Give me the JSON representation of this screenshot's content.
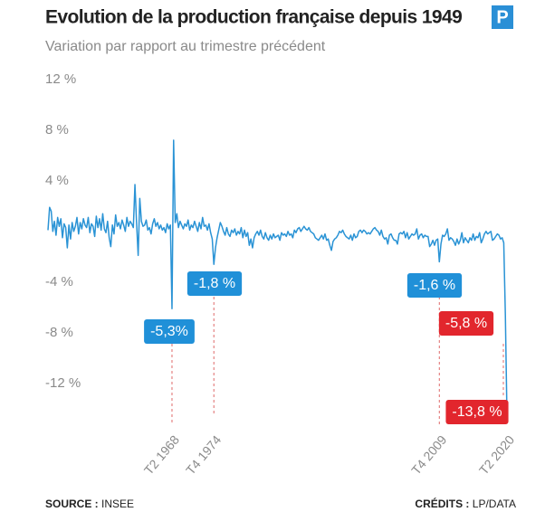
{
  "chart_data": {
    "type": "line",
    "title": "Evolution de la production française depuis 1949",
    "subtitle": "Variation par rapport au trimestre précédent",
    "logo": "P",
    "source_label": "SOURCE :",
    "source": "INSEE",
    "credits_label": "CRÉDITS :",
    "credits": "LP/DATA",
    "ylim": [
      -14,
      12
    ],
    "yticks": [
      {
        "value": 12,
        "label": "12 %"
      },
      {
        "value": 8,
        "label": "8 %"
      },
      {
        "value": 4,
        "label": "4 %"
      },
      {
        "value": -4,
        "label": "-4 %"
      },
      {
        "value": -8,
        "label": "-8 %"
      },
      {
        "value": -12,
        "label": "-12 %"
      }
    ],
    "categories": [
      null,
      null,
      null,
      null,
      null,
      null,
      null,
      null,
      null,
      null,
      null,
      null,
      null,
      null,
      null,
      null,
      null,
      null,
      null,
      null,
      null,
      null,
      null,
      null,
      null,
      null,
      null,
      null,
      null,
      null,
      null,
      null,
      null,
      null,
      null,
      null,
      null,
      null,
      null,
      null,
      null,
      null,
      null,
      null,
      null,
      null,
      null,
      null,
      null,
      null,
      null,
      null,
      null,
      null,
      null,
      null,
      null,
      null,
      null,
      null,
      null,
      null,
      null,
      null,
      null,
      null,
      null,
      null,
      null,
      null,
      null,
      null,
      null,
      null,
      null,
      null,
      null,
      "T2 1968",
      null,
      null,
      null,
      null,
      null,
      null,
      null,
      null,
      null,
      null,
      null,
      null,
      null,
      null,
      null,
      null,
      null,
      null,
      null,
      null,
      null,
      null,
      null,
      null,
      null,
      "T4 1974",
      null,
      null,
      null,
      null,
      null,
      null,
      null,
      null,
      null,
      null,
      null,
      null,
      null,
      null,
      null,
      null,
      null,
      null,
      null,
      null,
      null,
      null,
      null,
      null,
      null,
      null,
      null,
      null,
      null,
      null,
      null,
      null,
      null,
      null,
      null,
      null,
      null,
      null,
      null,
      null,
      null,
      null,
      null,
      null,
      null,
      null,
      null,
      null,
      null,
      null,
      null,
      null,
      null,
      null,
      null,
      null,
      null,
      null,
      null,
      null,
      null,
      null,
      null,
      null,
      null,
      null,
      null,
      null,
      null,
      null,
      null,
      null,
      null,
      null,
      null,
      null,
      null,
      null,
      null,
      null,
      null,
      null,
      null,
      null,
      null,
      null,
      null,
      null,
      null,
      null,
      null,
      null,
      null,
      null,
      null,
      null,
      null,
      null,
      null,
      null,
      null,
      null,
      null,
      null,
      null,
      null,
      null,
      null,
      null,
      null,
      null,
      null,
      null,
      null,
      null,
      null,
      null,
      null,
      null,
      null,
      null,
      null,
      null,
      null,
      null,
      null,
      null,
      null,
      null,
      null,
      null,
      null,
      null,
      null,
      null,
      null,
      null,
      null,
      null,
      "T4 2009",
      null,
      null,
      null,
      null,
      null,
      null,
      null,
      null,
      null,
      null,
      null,
      null,
      null,
      null,
      null,
      null,
      null,
      null,
      null,
      null,
      null,
      null,
      null,
      null,
      null,
      null,
      null,
      null,
      null,
      null,
      null,
      null,
      null,
      null,
      null,
      null,
      null,
      null,
      null,
      null,
      null,
      "T2 2020"
    ],
    "series": [
      {
        "name": "Variation",
        "color": "#2a93d5",
        "values": [
          0.9,
          2.7,
          2.4,
          0.8,
          1.6,
          0.5,
          1.9,
          1.2,
          1.8,
          0.3,
          1.4,
          1.1,
          -0.5,
          1.3,
          0.2,
          1.5,
          0.8,
          1.2,
          1.9,
          0.6,
          1.5,
          1.0,
          1.8,
          1.3,
          1.1,
          1.9,
          0.7,
          1.4,
          1.2,
          0.4,
          2.0,
          1.1,
          1.8,
          0.9,
          2.2,
          1.0,
          0.7,
          1.6,
          0.3,
          -0.4,
          1.3,
          0.6,
          2.1,
          1.2,
          1.5,
          1.0,
          1.7,
          1.3,
          0.8,
          1.9,
          1.2,
          1.6,
          1.4,
          1.1,
          4.5,
          1.5,
          -1.1,
          3.4,
          1.6,
          1.2,
          1.3,
          1.7,
          0.9,
          1.1,
          0.6,
          1.4,
          1.8,
          1.2,
          1.5,
          1.0,
          1.3,
          0.9,
          1.1,
          0.7,
          1.4,
          1.0,
          1.3,
          -5.3,
          8.0,
          1.5,
          2.2,
          1.1,
          1.6,
          1.3,
          1.0,
          1.4,
          1.2,
          1.7,
          0.9,
          1.3,
          1.1,
          1.6,
          1.2,
          0.8,
          1.5,
          1.0,
          1.9,
          1.2,
          1.3,
          0.9,
          1.4,
          0.7,
          0.2,
          -1.8,
          -0.5,
          0.3,
          0.9,
          1.5,
          1.2,
          0.8,
          0.5,
          1.1,
          0.6,
          0.4,
          0.9,
          0.7,
          1.0,
          0.5,
          0.8,
          0.6,
          1.1,
          0.3,
          0.9,
          0.4,
          0.7,
          -0.3,
          0.2,
          -0.5,
          0.3,
          0.6,
          0.8,
          0.5,
          0.9,
          0.4,
          0.2,
          0.7,
          0.3,
          0.1,
          0.5,
          0.2,
          0.6,
          0.3,
          0.4,
          0.5,
          0.1,
          0.7,
          0.5,
          0.6,
          0.4,
          0.8,
          0.5,
          0.6,
          0.3,
          0.9,
          0.7,
          1.0,
          1.1,
          0.8,
          1.0,
          1.2,
          1.0,
          0.9,
          1.1,
          0.8,
          0.7,
          0.6,
          0.3,
          0.2,
          0.1,
          0.3,
          0.5,
          0.2,
          0.6,
          0.1,
          0.2,
          -0.3,
          -0.7,
          0.0,
          0.2,
          0.3,
          0.5,
          0.8,
          0.7,
          0.9,
          0.6,
          0.4,
          0.3,
          0.2,
          0.5,
          0.1,
          0.6,
          0.3,
          0.4,
          0.8,
          0.9,
          0.7,
          0.9,
          0.8,
          0.6,
          0.7,
          0.6,
          0.8,
          1.0,
          1.1,
          0.9,
          0.8,
          0.5,
          0.9,
          0.4,
          0.2,
          0.3,
          -0.2,
          0.5,
          0.6,
          0.3,
          0.1,
          0.1,
          -0.2,
          0.6,
          0.7,
          0.6,
          0.8,
          0.3,
          0.7,
          0.2,
          0.4,
          0.6,
          0.5,
          0.6,
          1.0,
          0.2,
          0.5,
          0.6,
          0.3,
          0.5,
          0.4,
          0.4,
          -0.4,
          -0.2,
          0.1,
          -0.3,
          0.1,
          0.2,
          -1.6,
          -0.2,
          0.5,
          0.4,
          0.6,
          1.0,
          0.1,
          0.3,
          0.2,
          0.0,
          -0.3,
          0.2,
          -0.2,
          0.1,
          0.7,
          -0.1,
          0.3,
          0.1,
          -0.1,
          0.3,
          0.1,
          0.6,
          0.1,
          0.4,
          0.3,
          0.7,
          -0.1,
          0.2,
          0.6,
          0.8,
          0.6,
          0.7,
          0.8,
          0.1,
          0.2,
          0.4,
          0.6,
          0.5,
          0.2,
          0.3,
          -0.1,
          -5.8,
          -13.8
        ]
      }
    ],
    "annotations": [
      {
        "label": "-5,3%",
        "value": -5.3,
        "color": "#2090d8"
      },
      {
        "label": "-1,8 %",
        "value": -1.8,
        "color": "#2090d8"
      },
      {
        "label": "-1,6 %",
        "value": -1.6,
        "color": "#2090d8"
      },
      {
        "label": "-5,8 %",
        "value": -5.8,
        "color": "#e2262d"
      },
      {
        "label": "-13,8 %",
        "value": -13.8,
        "color": "#e2262d"
      }
    ]
  }
}
